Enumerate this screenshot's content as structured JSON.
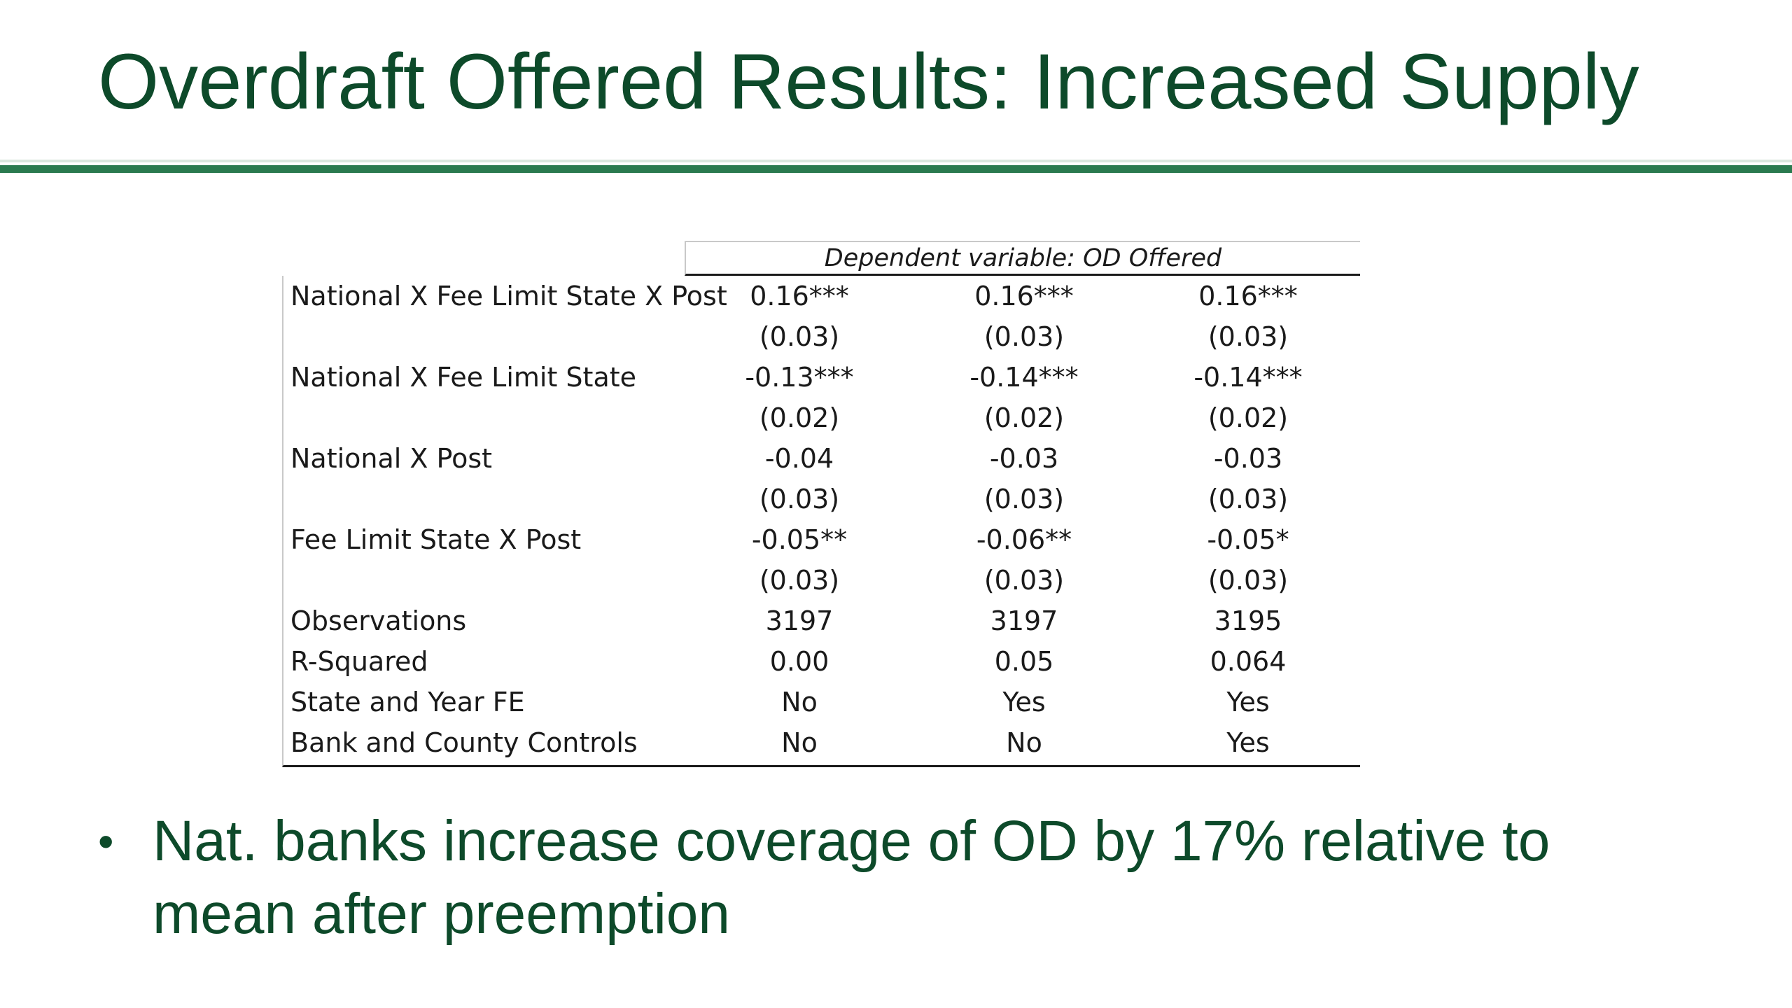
{
  "slide": {
    "title": "Overdraft Offered Results: Increased Supply",
    "accent_color": "#2a7a4f",
    "text_color": "#0d4a2a"
  },
  "table": {
    "dependent_variable_header": "Dependent variable: OD Offered",
    "rows": [
      {
        "label": "National X Fee Limit State X Post",
        "values": [
          "0.16***",
          "0.16***",
          "0.16***"
        ]
      },
      {
        "label": "",
        "values": [
          "(0.03)",
          "(0.03)",
          "(0.03)"
        ]
      },
      {
        "label": "National X Fee Limit State",
        "values": [
          "-0.13***",
          "-0.14***",
          "-0.14***"
        ]
      },
      {
        "label": "",
        "values": [
          "(0.02)",
          "(0.02)",
          "(0.02)"
        ]
      },
      {
        "label": "National X Post",
        "values": [
          "-0.04",
          "-0.03",
          "-0.03"
        ]
      },
      {
        "label": "",
        "values": [
          "(0.03)",
          "(0.03)",
          "(0.03)"
        ]
      },
      {
        "label": "Fee Limit State X Post",
        "values": [
          "-0.05**",
          "-0.06**",
          "-0.05*"
        ]
      },
      {
        "label": "",
        "values": [
          "(0.03)",
          "(0.03)",
          "(0.03)"
        ]
      },
      {
        "label": "Observations",
        "values": [
          "3197",
          "3197",
          "3195"
        ]
      },
      {
        "label": "R-Squared",
        "values": [
          "0.00",
          "0.05",
          "0.064"
        ]
      },
      {
        "label": "State and Year FE",
        "values": [
          "No",
          "Yes",
          "Yes"
        ]
      },
      {
        "label": "Bank and County Controls",
        "values": [
          "No",
          "No",
          "Yes"
        ]
      }
    ]
  },
  "bullets": [
    {
      "marker": "•",
      "text": "Nat. banks increase coverage of OD by 17% relative to mean after preemption"
    }
  ]
}
